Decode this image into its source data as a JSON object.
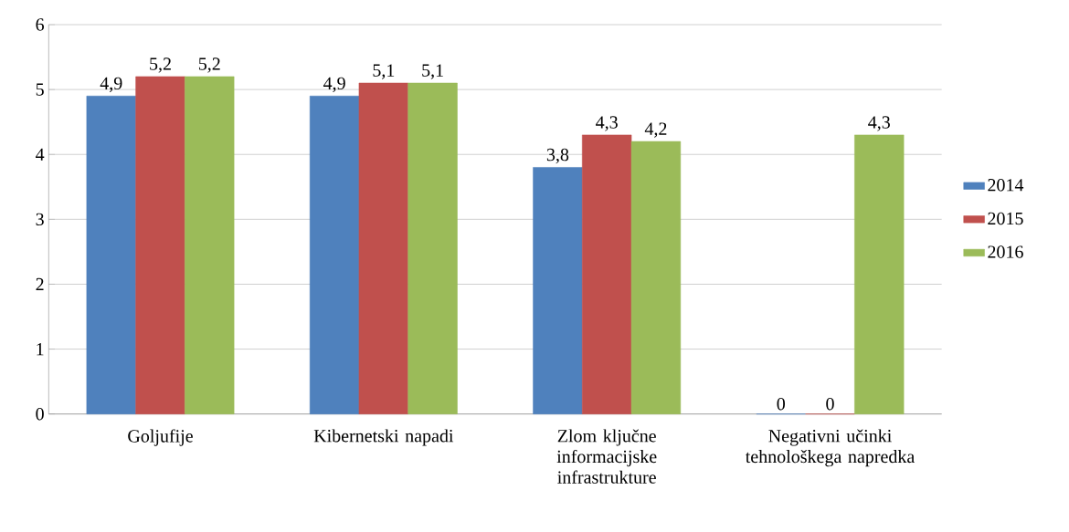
{
  "chart_data": {
    "type": "bar",
    "categories": [
      "Goljufije",
      "Kibernetski napadi",
      "Zlom ključne informacijske infrastrukture",
      "Negativni učinki tehnološkega napredka"
    ],
    "series": [
      {
        "name": "2014",
        "color": "#4f81bd",
        "values": [
          4.9,
          4.9,
          3.8,
          0
        ],
        "value_labels": [
          "4,9",
          "4,9",
          "3,8",
          "0"
        ]
      },
      {
        "name": "2015",
        "color": "#c0504d",
        "values": [
          5.2,
          5.1,
          4.3,
          0
        ],
        "value_labels": [
          "5,2",
          "5,1",
          "4,3",
          "0"
        ]
      },
      {
        "name": "2016",
        "color": "#9bbb59",
        "values": [
          5.2,
          5.1,
          4.2,
          4.3
        ],
        "value_labels": [
          "5,2",
          "5,1",
          "4,2",
          "4,3"
        ]
      }
    ],
    "ylim": [
      0,
      6
    ],
    "yticks": [
      0,
      1,
      2,
      3,
      4,
      5,
      6
    ],
    "grid": "y",
    "legend": "right"
  }
}
